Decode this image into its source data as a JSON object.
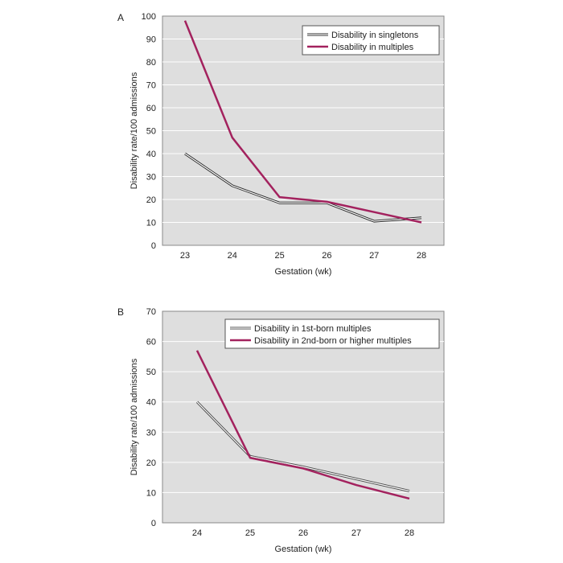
{
  "chart_data": [
    {
      "type": "line",
      "panel": "A",
      "xlabel": "Gestation (wk)",
      "ylabel": "Disability rate/100 admissions",
      "categories": [
        "23",
        "24",
        "25",
        "26",
        "27",
        "28"
      ],
      "ylim": [
        0,
        100
      ],
      "yticks": [
        "0",
        "10",
        "20",
        "30",
        "40",
        "50",
        "60",
        "70",
        "80",
        "90",
        "100"
      ],
      "grid": true,
      "legend_position": "top-right",
      "series": [
        {
          "name": "Disability in singletons",
          "values": [
            40,
            26,
            18.5,
            18.5,
            10.5,
            12
          ],
          "color": "#222222",
          "style": "outline"
        },
        {
          "name": "Disability in multiples",
          "values": [
            98,
            47,
            21,
            19,
            14.5,
            10
          ],
          "color": "#a3225e",
          "style": "solid"
        }
      ]
    },
    {
      "type": "line",
      "panel": "B",
      "xlabel": "Gestation (wk)",
      "ylabel": "Disability rate/100 admissions",
      "categories": [
        "24",
        "25",
        "26",
        "27",
        "28"
      ],
      "ylim": [
        0,
        70
      ],
      "yticks": [
        "0",
        "10",
        "20",
        "30",
        "40",
        "50",
        "60",
        "70"
      ],
      "grid": true,
      "legend_position": "top-right",
      "series": [
        {
          "name": "Disability in 1st-born multiples",
          "values": [
            40,
            22,
            18.5,
            14.5,
            10.5
          ],
          "color": "#444444",
          "style": "outline"
        },
        {
          "name": "Disability in 2nd-born or higher multiples",
          "values": [
            57,
            21.5,
            18,
            12.5,
            8
          ],
          "color": "#a3225e",
          "style": "solid"
        }
      ]
    }
  ]
}
